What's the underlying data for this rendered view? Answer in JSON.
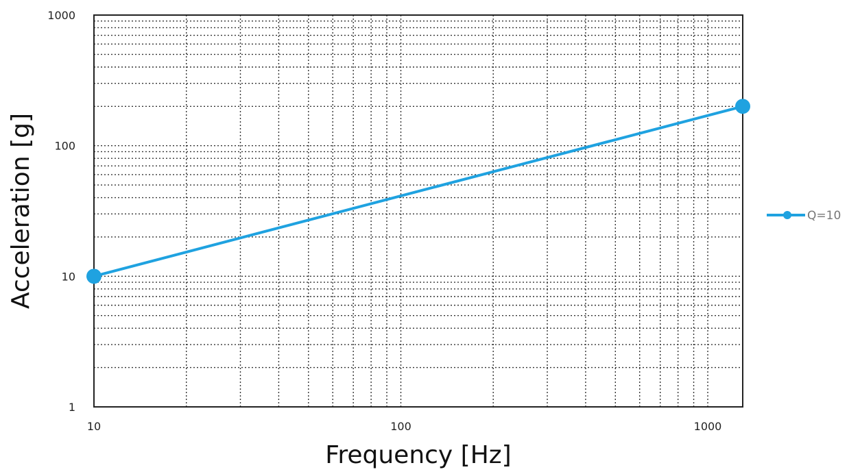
{
  "chart_data": {
    "type": "line",
    "xlabel": "Frequency [Hz]",
    "ylabel": "Acceleration [g]",
    "x_scale": "log",
    "y_scale": "log",
    "xlim": [
      10,
      1300
    ],
    "ylim": [
      1,
      1000
    ],
    "x_ticks": [
      "10",
      "100",
      "1000"
    ],
    "y_ticks": [
      "1",
      "10",
      "100",
      "1000"
    ],
    "grid": true,
    "legend_position": "right",
    "series": [
      {
        "name": "Q=10",
        "color": "#1fa2e0",
        "x": [
          10,
          1300
        ],
        "y": [
          10,
          200
        ]
      }
    ]
  }
}
